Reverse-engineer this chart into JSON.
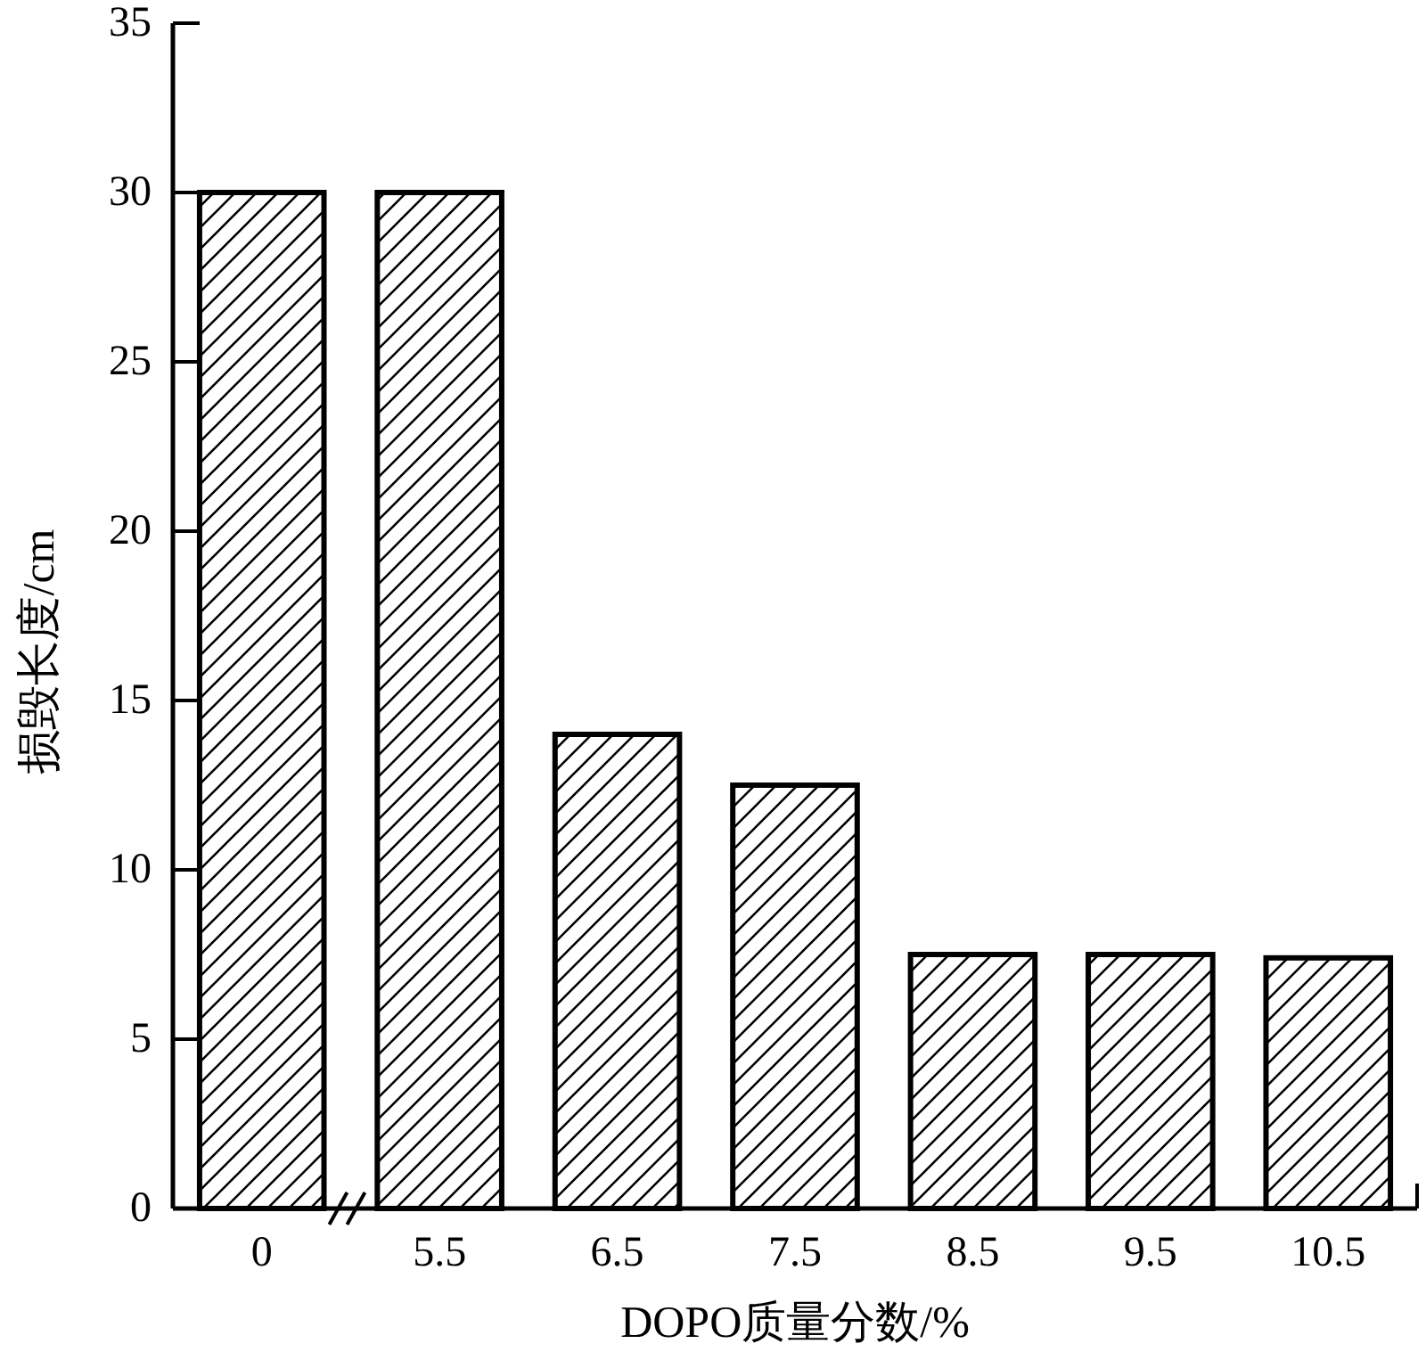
{
  "chart_data": {
    "type": "bar",
    "xlabel": "DOPO质量分数/%",
    "ylabel": "损毁长度/cm",
    "categories": [
      "0",
      "5.5",
      "6.5",
      "7.5",
      "8.5",
      "9.5",
      "10.5"
    ],
    "values": [
      30,
      30,
      14,
      12.5,
      7.5,
      7.5,
      7.4
    ],
    "color": "#000000",
    "ylim": [
      0,
      35
    ],
    "yticks": [
      0,
      5,
      10,
      15,
      20,
      25,
      30,
      35
    ],
    "grid": false
  }
}
